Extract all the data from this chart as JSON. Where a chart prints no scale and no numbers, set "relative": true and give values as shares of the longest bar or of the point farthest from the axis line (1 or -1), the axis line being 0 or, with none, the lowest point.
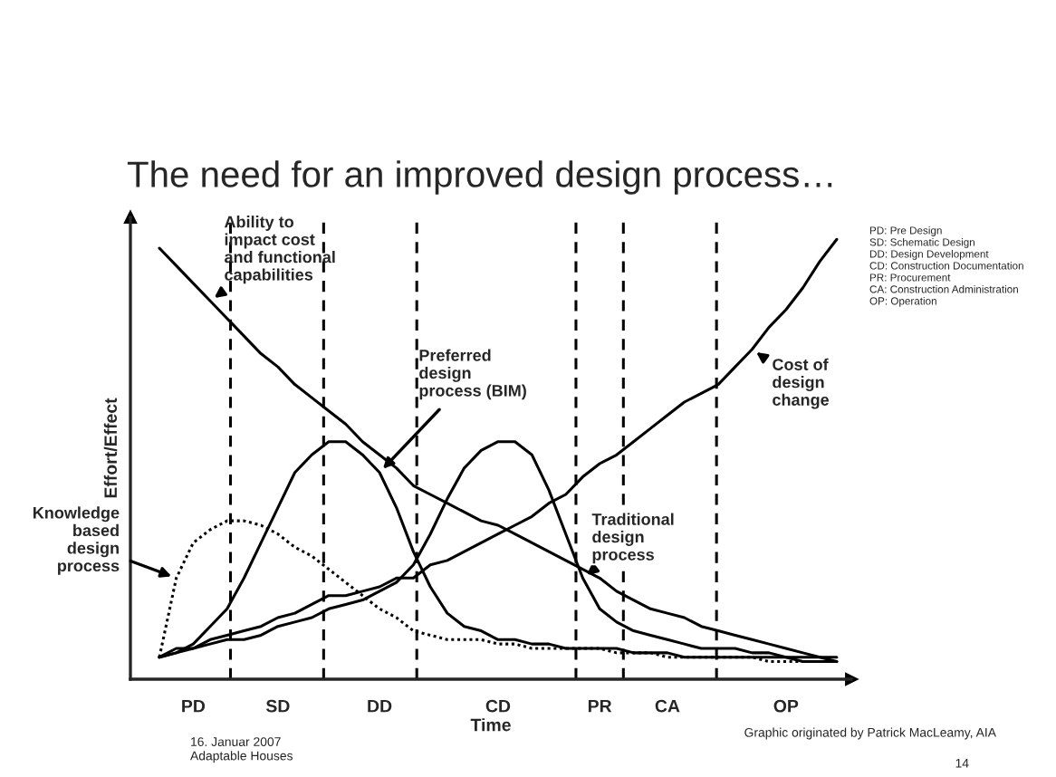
{
  "chart_data": {
    "type": "line",
    "title": "The need for an improved design process…",
    "xlabel": "Time",
    "ylabel": "Effort/Effect",
    "relative": true,
    "categories": [
      null,
      null,
      "PD",
      null,
      null,
      null,
      null,
      "SD",
      null,
      null,
      null,
      null,
      null,
      "DD",
      null,
      null,
      null,
      null,
      null,
      null,
      "CD",
      null,
      null,
      null,
      null,
      null,
      "PR",
      null,
      null,
      null,
      "CA",
      null,
      null,
      null,
      null,
      null,
      null,
      "OP",
      null,
      null,
      null
    ],
    "series": [
      {
        "name": "Ability to\nimpact cost\nand functional\ncapabilities",
        "color": "#000000",
        "line_style": "solid",
        "values": [
          0.98,
          0.94,
          0.9,
          0.86,
          0.82,
          0.78,
          0.74,
          0.71,
          0.67,
          0.64,
          0.61,
          0.58,
          0.54,
          0.51,
          0.48,
          0.44,
          0.42,
          0.4,
          0.38,
          0.36,
          0.35,
          0.33,
          0.31,
          0.29,
          0.27,
          0.25,
          0.23,
          0.2,
          0.18,
          0.16,
          0.15,
          0.14,
          0.12,
          0.11,
          0.1,
          0.09,
          0.08,
          0.07,
          0.06,
          0.05,
          0.04
        ]
      },
      {
        "name": "Cost of\ndesign\nchange",
        "color": "#000000",
        "line_style": "solid",
        "values": [
          0.05,
          0.07,
          0.07,
          0.09,
          0.1,
          0.11,
          0.12,
          0.14,
          0.15,
          0.17,
          0.19,
          0.19,
          0.2,
          0.21,
          0.23,
          0.23,
          0.26,
          0.27,
          0.29,
          0.31,
          0.33,
          0.35,
          0.37,
          0.4,
          0.42,
          0.46,
          0.49,
          0.51,
          0.54,
          0.57,
          0.6,
          0.63,
          0.65,
          0.67,
          0.71,
          0.75,
          0.8,
          0.84,
          0.89,
          0.95,
          1.0
        ]
      },
      {
        "name": "Preferred\ndesign\nprocess (BIM)",
        "color": "#000000",
        "line_style": "solid",
        "values": [
          0.05,
          0.06,
          0.08,
          0.12,
          0.16,
          0.23,
          0.31,
          0.39,
          0.47,
          0.51,
          0.54,
          0.54,
          0.51,
          0.47,
          0.39,
          0.29,
          0.21,
          0.15,
          0.12,
          0.11,
          0.09,
          0.09,
          0.08,
          0.08,
          0.07,
          0.07,
          0.07,
          0.07,
          0.06,
          0.06,
          0.06,
          0.05,
          0.05,
          0.05,
          0.05,
          0.05,
          0.05,
          0.05,
          0.04,
          0.04,
          0.04
        ]
      },
      {
        "name": "Traditional\ndesign\nprocess",
        "color": "#000000",
        "line_style": "solid",
        "values": [
          0.05,
          0.06,
          0.07,
          0.08,
          0.09,
          0.09,
          0.1,
          0.12,
          0.13,
          0.14,
          0.16,
          0.17,
          0.18,
          0.2,
          0.22,
          0.26,
          0.33,
          0.41,
          0.48,
          0.52,
          0.54,
          0.54,
          0.51,
          0.43,
          0.33,
          0.23,
          0.16,
          0.13,
          0.11,
          0.1,
          0.09,
          0.08,
          0.07,
          0.07,
          0.07,
          0.06,
          0.06,
          0.05,
          0.05,
          0.05,
          0.05
        ]
      },
      {
        "name": "Knowledge\nbased\ndesign\nprocess",
        "color": "#000000",
        "line_style": "dotted",
        "values": [
          0.05,
          0.23,
          0.31,
          0.34,
          0.36,
          0.36,
          0.35,
          0.33,
          0.3,
          0.28,
          0.25,
          0.22,
          0.19,
          0.16,
          0.14,
          0.11,
          0.1,
          0.09,
          0.09,
          0.09,
          0.08,
          0.08,
          0.07,
          0.07,
          0.07,
          0.07,
          0.07,
          0.06,
          0.06,
          0.06,
          0.05,
          0.05,
          0.05,
          0.05,
          0.05,
          0.05,
          0.04,
          0.04,
          0.04,
          0.04,
          0.04
        ]
      }
    ],
    "annotations": [
      "PD: Pre Design\nSD: Schematic Design\nDD: Design Development\nCD: Construction Documentation\nPR: Procurement\nCA: Construction Administration\nOP: Operation",
      "Graphic originated by Patrick MacLeamy, AIA",
      "16. Januar 2007\nAdaptable Houses",
      "14"
    ]
  }
}
